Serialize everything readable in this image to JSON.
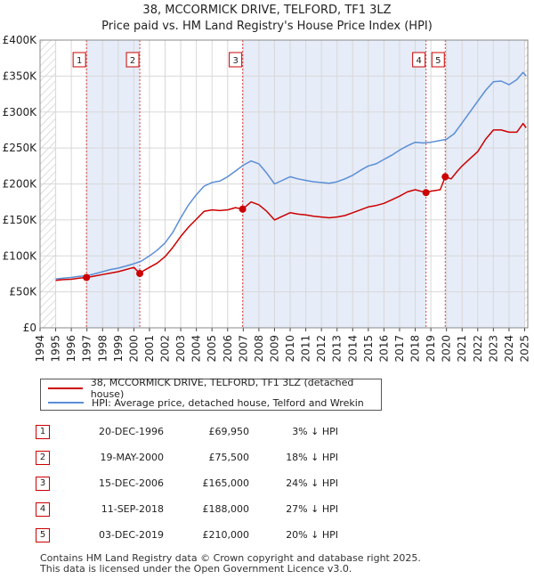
{
  "chart_data": {
    "type": "line",
    "title": "38, MCCORMICK DRIVE, TELFORD, TF1 3LZ",
    "subtitle": "Price paid vs. HM Land Registry's House Price Index (HPI)",
    "xlabel": "",
    "ylabel": "",
    "xlim": [
      1994,
      2025.2
    ],
    "ylim": [
      0,
      400000
    ],
    "y_ticks": [
      {
        "value": 0,
        "label": "£0"
      },
      {
        "value": 50000,
        "label": "£50K"
      },
      {
        "value": 100000,
        "label": "£100K"
      },
      {
        "value": 150000,
        "label": "£150K"
      },
      {
        "value": 200000,
        "label": "£200K"
      },
      {
        "value": 250000,
        "label": "£250K"
      },
      {
        "value": 300000,
        "label": "£300K"
      },
      {
        "value": 350000,
        "label": "£350K"
      },
      {
        "value": 400000,
        "label": "£400K"
      }
    ],
    "x_ticks": [
      "1994",
      "1995",
      "1996",
      "1997",
      "1998",
      "1999",
      "2000",
      "2001",
      "2002",
      "2003",
      "2004",
      "2005",
      "2006",
      "2007",
      "2008",
      "2009",
      "2010",
      "2011",
      "2012",
      "2013",
      "2014",
      "2015",
      "2016",
      "2017",
      "2018",
      "2019",
      "2020",
      "2021",
      "2022",
      "2023",
      "2024",
      "2025"
    ],
    "grid": true,
    "legend_position": "below",
    "series": [
      {
        "name": "38, MCCORMICK DRIVE, TELFORD, TF1 3LZ (detached house)",
        "color": "#cc0000",
        "points": [
          [
            1995.0,
            66000
          ],
          [
            1995.5,
            67000
          ],
          [
            1996.0,
            67500
          ],
          [
            1996.5,
            69000
          ],
          [
            1996.97,
            69950
          ],
          [
            1997.5,
            72000
          ],
          [
            1998.0,
            74000
          ],
          [
            1998.5,
            76000
          ],
          [
            1999.0,
            78000
          ],
          [
            1999.5,
            81000
          ],
          [
            2000.0,
            84000
          ],
          [
            2000.38,
            75500
          ],
          [
            2000.6,
            79000
          ],
          [
            2001.0,
            84000
          ],
          [
            2001.5,
            90000
          ],
          [
            2002.0,
            99000
          ],
          [
            2002.5,
            112000
          ],
          [
            2003.0,
            127000
          ],
          [
            2003.5,
            140000
          ],
          [
            2004.0,
            151000
          ],
          [
            2004.5,
            162000
          ],
          [
            2005.0,
            164000
          ],
          [
            2005.5,
            163000
          ],
          [
            2006.0,
            164000
          ],
          [
            2006.5,
            167000
          ],
          [
            2006.96,
            165000
          ],
          [
            2007.5,
            175000
          ],
          [
            2008.0,
            171000
          ],
          [
            2008.5,
            162000
          ],
          [
            2009.0,
            150000
          ],
          [
            2009.5,
            155000
          ],
          [
            2010.0,
            160000
          ],
          [
            2010.5,
            158000
          ],
          [
            2011.0,
            157000
          ],
          [
            2011.5,
            155000
          ],
          [
            2012.0,
            154000
          ],
          [
            2012.5,
            153000
          ],
          [
            2013.0,
            154000
          ],
          [
            2013.5,
            156000
          ],
          [
            2014.0,
            160000
          ],
          [
            2014.5,
            164000
          ],
          [
            2015.0,
            168000
          ],
          [
            2015.5,
            170000
          ],
          [
            2016.0,
            173000
          ],
          [
            2016.5,
            178000
          ],
          [
            2017.0,
            183000
          ],
          [
            2017.5,
            189000
          ],
          [
            2018.0,
            192000
          ],
          [
            2018.69,
            188000
          ],
          [
            2019.0,
            190000
          ],
          [
            2019.6,
            192000
          ],
          [
            2019.92,
            210000
          ],
          [
            2020.3,
            207000
          ],
          [
            2020.7,
            218000
          ],
          [
            2021.0,
            225000
          ],
          [
            2021.5,
            235000
          ],
          [
            2022.0,
            245000
          ],
          [
            2022.5,
            262000
          ],
          [
            2023.0,
            275000
          ],
          [
            2023.5,
            275000
          ],
          [
            2024.0,
            272000
          ],
          [
            2024.5,
            272000
          ],
          [
            2024.9,
            284000
          ],
          [
            2025.1,
            278000
          ]
        ]
      },
      {
        "name": "HPI: Average price, detached house, Telford and Wrekin",
        "color": "#5b8ed6",
        "points": [
          [
            1995.0,
            68000
          ],
          [
            1995.5,
            69000
          ],
          [
            1996.0,
            70000
          ],
          [
            1996.5,
            71500
          ],
          [
            1997.0,
            72500
          ],
          [
            1997.5,
            75000
          ],
          [
            1998.0,
            78000
          ],
          [
            1998.5,
            81000
          ],
          [
            1999.0,
            83000
          ],
          [
            1999.5,
            86000
          ],
          [
            2000.0,
            89000
          ],
          [
            2000.5,
            93000
          ],
          [
            2001.0,
            100000
          ],
          [
            2001.5,
            108000
          ],
          [
            2002.0,
            118000
          ],
          [
            2002.5,
            133000
          ],
          [
            2003.0,
            153000
          ],
          [
            2003.5,
            171000
          ],
          [
            2004.0,
            185000
          ],
          [
            2004.5,
            197000
          ],
          [
            2005.0,
            202000
          ],
          [
            2005.5,
            204000
          ],
          [
            2006.0,
            210000
          ],
          [
            2006.5,
            218000
          ],
          [
            2007.0,
            226000
          ],
          [
            2007.5,
            232000
          ],
          [
            2008.0,
            228000
          ],
          [
            2008.5,
            215000
          ],
          [
            2009.0,
            200000
          ],
          [
            2009.5,
            205000
          ],
          [
            2010.0,
            210000
          ],
          [
            2010.5,
            207000
          ],
          [
            2011.0,
            205000
          ],
          [
            2011.5,
            203000
          ],
          [
            2012.0,
            202000
          ],
          [
            2012.5,
            201000
          ],
          [
            2013.0,
            203000
          ],
          [
            2013.5,
            207000
          ],
          [
            2014.0,
            212000
          ],
          [
            2014.5,
            219000
          ],
          [
            2015.0,
            225000
          ],
          [
            2015.5,
            228000
          ],
          [
            2016.0,
            234000
          ],
          [
            2016.5,
            240000
          ],
          [
            2017.0,
            247000
          ],
          [
            2017.5,
            253000
          ],
          [
            2018.0,
            258000
          ],
          [
            2018.5,
            257000
          ],
          [
            2019.0,
            258000
          ],
          [
            2019.5,
            260000
          ],
          [
            2020.0,
            262000
          ],
          [
            2020.5,
            270000
          ],
          [
            2021.0,
            285000
          ],
          [
            2021.5,
            300000
          ],
          [
            2022.0,
            315000
          ],
          [
            2022.5,
            330000
          ],
          [
            2023.0,
            342000
          ],
          [
            2023.5,
            343000
          ],
          [
            2024.0,
            338000
          ],
          [
            2024.5,
            345000
          ],
          [
            2024.9,
            355000
          ],
          [
            2025.1,
            350000
          ]
        ]
      }
    ],
    "sales": [
      {
        "n": "1",
        "x": 1996.97,
        "price": 69950
      },
      {
        "n": "2",
        "x": 2000.38,
        "price": 75500
      },
      {
        "n": "3",
        "x": 2006.96,
        "price": 165000
      },
      {
        "n": "4",
        "x": 2018.69,
        "price": 188000
      },
      {
        "n": "5",
        "x": 2019.92,
        "price": 210000
      }
    ]
  },
  "legend": {
    "property": "38, MCCORMICK DRIVE, TELFORD, TF1 3LZ (detached house)",
    "hpi": "HPI: Average price, detached house, Telford and Wrekin"
  },
  "table": [
    {
      "n": "1",
      "date": "20-DEC-1996",
      "price": "£69,950",
      "pct": "3% ↓ HPI"
    },
    {
      "n": "2",
      "date": "19-MAY-2000",
      "price": "£75,500",
      "pct": "18% ↓ HPI"
    },
    {
      "n": "3",
      "date": "15-DEC-2006",
      "price": "£165,000",
      "pct": "24% ↓ HPI"
    },
    {
      "n": "4",
      "date": "11-SEP-2018",
      "price": "£188,000",
      "pct": "27% ↓ HPI"
    },
    {
      "n": "5",
      "date": "03-DEC-2019",
      "price": "£210,000",
      "pct": "20% ↓ HPI"
    }
  ],
  "footer": {
    "line1": "Contains HM Land Registry data © Crown copyright and database right 2025.",
    "line2": "This data is licensed under the Open Government Licence v3.0."
  },
  "colors": {
    "property_line": "#cc0000",
    "hpi_line": "#5b8ed6",
    "shade": "#dde6f5",
    "hatch": "#c8c8c8",
    "grid": "#d8d8d8"
  }
}
